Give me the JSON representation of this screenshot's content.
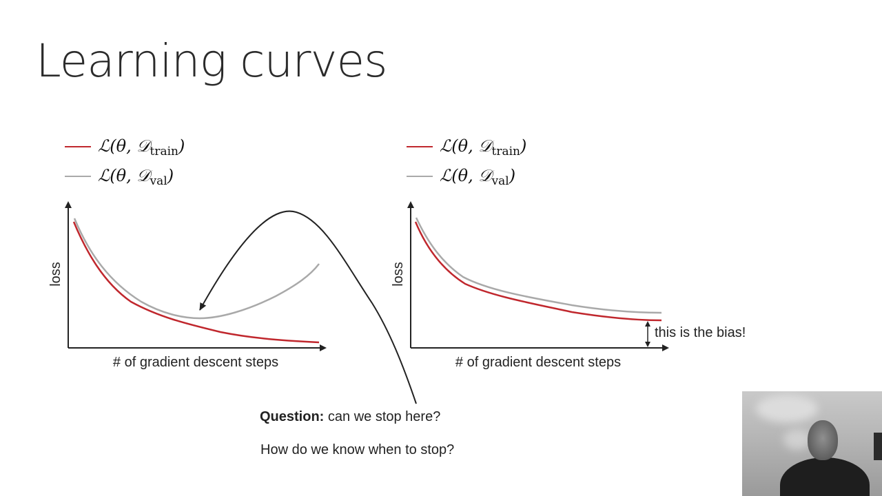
{
  "slide": {
    "title": "Learning curves",
    "question_label": "Question:",
    "question_text": " can we stop here?",
    "followup": "How do we know when to stop?",
    "bias_label": "this is the bias!"
  },
  "legend": {
    "train_text": "ℒ(θ, 𝒟",
    "train_sub": "train",
    "val_text": "ℒ(θ, 𝒟",
    "val_sub": "val",
    "close_paren": ")"
  },
  "colors": {
    "train": "#c0272d",
    "val": "#a9a9a9",
    "axis": "#222222"
  },
  "chart_data": [
    {
      "type": "line",
      "xlabel": "# of gradient descent steps",
      "ylabel": "loss",
      "series": [
        {
          "name": "ℒ(θ, 𝒟train)",
          "color": "#c0272d",
          "shape": "decreasing-flattening"
        },
        {
          "name": "ℒ(θ, 𝒟val)",
          "color": "#a9a9a9",
          "shape": "decreasing-then-increasing"
        }
      ],
      "annotation": "arrow pointing to minimum of validation curve"
    },
    {
      "type": "line",
      "xlabel": "# of gradient descent steps",
      "ylabel": "loss",
      "series": [
        {
          "name": "ℒ(θ, 𝒟train)",
          "color": "#c0272d",
          "shape": "decreasing-flattening"
        },
        {
          "name": "ℒ(θ, 𝒟val)",
          "color": "#a9a9a9",
          "shape": "decreasing-flattening"
        }
      ],
      "annotation": "this is the bias!"
    }
  ],
  "webcam": {
    "icon": "webcam-feed"
  }
}
